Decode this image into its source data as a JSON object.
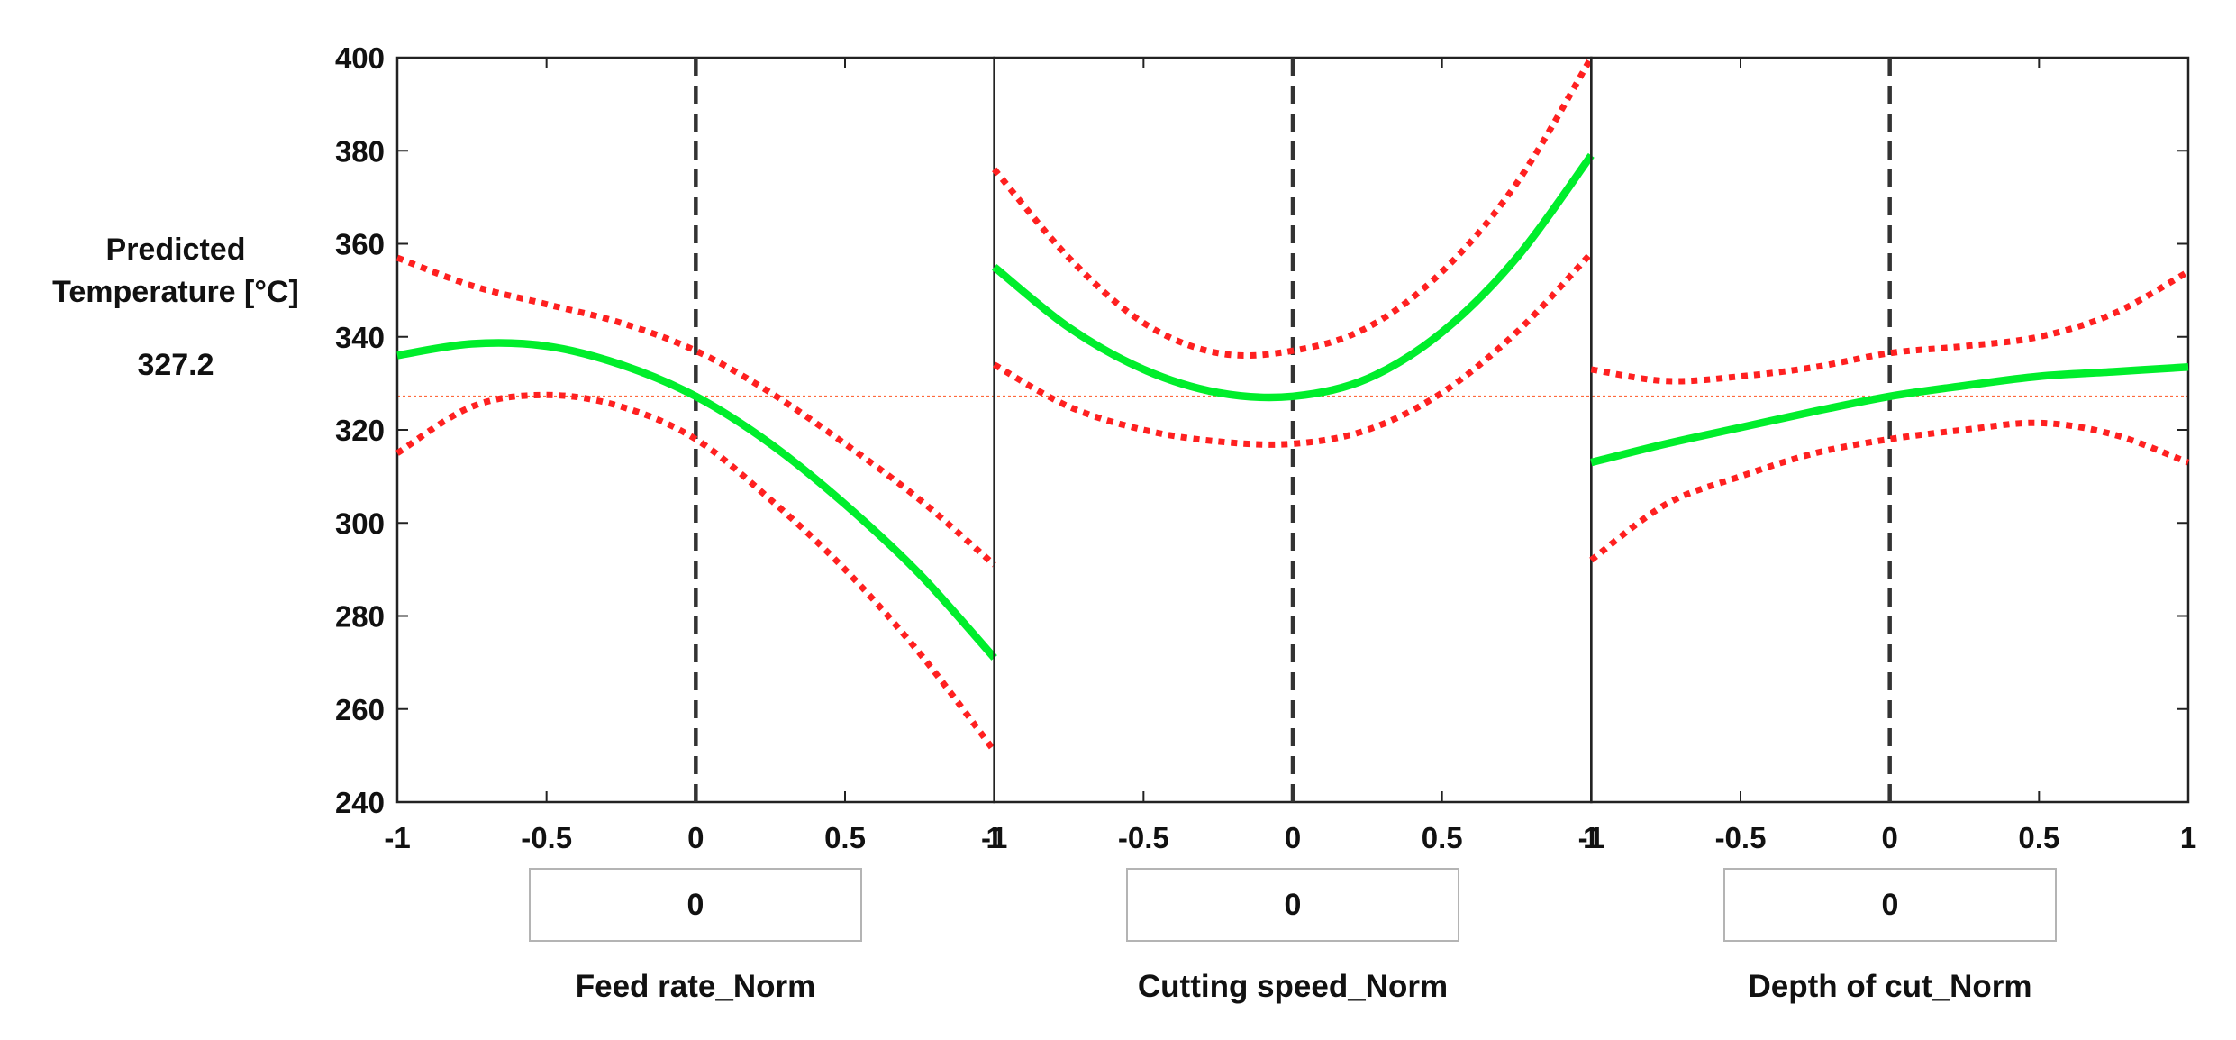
{
  "response": {
    "label_line1": "Predicted",
    "label_line2": "Temperature [°C]",
    "value": "327.2",
    "value_number": 327.2
  },
  "chart_data": {
    "type": "line",
    "y_axis": {
      "ylim": [
        240,
        400
      ],
      "ticks": [
        240,
        260,
        280,
        300,
        320,
        340,
        360,
        380,
        400
      ]
    },
    "x_ticks": [
      -1,
      -0.5,
      0,
      0.5,
      1
    ],
    "x_tick_labels": [
      "-1",
      "-0.5",
      "0",
      "0.5",
      "1"
    ],
    "reference_line_y": 327.2,
    "panels": [
      {
        "factor": "Feed rate_Norm",
        "current_value": "0",
        "xlim": [
          -1,
          1
        ],
        "x": [
          -1.0,
          -0.75,
          -0.5,
          -0.25,
          0.0,
          0.25,
          0.5,
          0.75,
          1.0
        ],
        "predicted": [
          336,
          338.5,
          338,
          334,
          327.2,
          317,
          304,
          289,
          271
        ],
        "lower_ci": [
          315,
          325,
          327.5,
          325,
          318,
          305,
          290,
          272,
          251
        ],
        "upper_ci": [
          357,
          351,
          347,
          343,
          337,
          328,
          317,
          305,
          291
        ]
      },
      {
        "factor": "Cutting speed_Norm",
        "current_value": "0",
        "xlim": [
          -1,
          1
        ],
        "x": [
          -1.0,
          -0.75,
          -0.5,
          -0.25,
          0.0,
          0.25,
          0.5,
          0.75,
          1.0
        ],
        "predicted": [
          355,
          342,
          333,
          328,
          327.2,
          331,
          341,
          357,
          379
        ],
        "lower_ci": [
          334,
          325,
          320,
          317.5,
          317,
          320,
          328,
          341,
          358
        ],
        "upper_ci": [
          376,
          357,
          343,
          336.5,
          337,
          342,
          354,
          373,
          400
        ]
      },
      {
        "factor": "Depth of cut_Norm",
        "current_value": "0",
        "xlim": [
          -1,
          1
        ],
        "x": [
          -1.0,
          -0.75,
          -0.5,
          -0.25,
          0.0,
          0.25,
          0.5,
          0.75,
          1.0
        ],
        "predicted": [
          313,
          317,
          320.5,
          324,
          327.2,
          329.5,
          331.5,
          332.5,
          333.5
        ],
        "lower_ci": [
          292,
          304,
          310,
          315,
          318,
          320,
          321.5,
          319,
          313
        ],
        "upper_ci": [
          333,
          330.5,
          331.5,
          333.5,
          336.5,
          338,
          340,
          345,
          354
        ]
      }
    ],
    "colors": {
      "predicted": "#00ee2c",
      "ci": "#ff2020",
      "reference": "#ff6a3d",
      "current": "#333333"
    }
  }
}
